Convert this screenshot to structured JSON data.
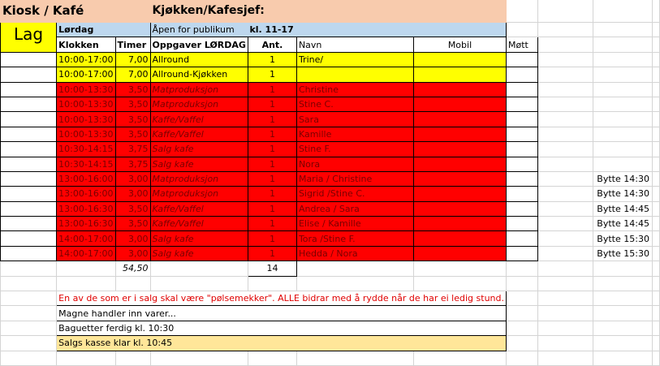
{
  "header": {
    "title": "Kiosk / Kafé",
    "manager_label": "Kjøkken/Kafesjef:",
    "team_label": "Lag",
    "day": "Lørdag",
    "open_label": "Åpen for publikum",
    "open_hours": "kl. 11-17"
  },
  "columns": {
    "time": "Klokken",
    "hours": "Timer",
    "task": "Oppgaver LØRDAG",
    "count": "Ant.",
    "name": "Navn",
    "mobile": "Mobil",
    "attended": "Møtt"
  },
  "shifts": [
    {
      "time": "10:00-17:00",
      "hours": "7,00",
      "task": "Allround",
      "count": "1",
      "name": "Trine/",
      "color": "yellow",
      "note": ""
    },
    {
      "time": "10:00-17:00",
      "hours": "7,00",
      "task": "Allround-Kjøkken",
      "count": "1",
      "name": "",
      "color": "yellow",
      "note": ""
    },
    {
      "time": "10:00-13:30",
      "hours": "3,50",
      "task": "Matproduksjon",
      "count": "1",
      "name": "Christine",
      "color": "red",
      "note": ""
    },
    {
      "time": "10:00-13:30",
      "hours": "3,50",
      "task": "Matproduksjon",
      "count": "1",
      "name": "Stine C.",
      "color": "red",
      "note": ""
    },
    {
      "time": "10:00-13:30",
      "hours": "3,50",
      "task": "Kaffe/Vaffel",
      "count": "1",
      "name": "Sara",
      "color": "red",
      "note": ""
    },
    {
      "time": "10:00-13:30",
      "hours": "3,50",
      "task": "Kaffe/Vaffel",
      "count": "1",
      "name": "Kamille",
      "color": "red",
      "note": ""
    },
    {
      "time": "10:30-14:15",
      "hours": "3,75",
      "task": "Salg kafe",
      "count": "1",
      "name": "Stine F.",
      "color": "red",
      "note": ""
    },
    {
      "time": "10:30-14:15",
      "hours": "3,75",
      "task": "Salg kafe",
      "count": "1",
      "name": "Nora",
      "color": "red",
      "note": ""
    },
    {
      "time": "13:00-16:00",
      "hours": "3,00",
      "task": "Matproduksjon",
      "count": "1",
      "name": "Maria / Christine",
      "color": "red",
      "note": "Bytte 14:30"
    },
    {
      "time": "13:00-16:00",
      "hours": "3,00",
      "task": "Matproduksjon",
      "count": "1",
      "name": "Sigrid /Stine C.",
      "color": "red",
      "note": "Bytte 14:30"
    },
    {
      "time": "13:00-16:30",
      "hours": "3,50",
      "task": "Kaffe/Vaffel",
      "count": "1",
      "name": "Andrea / Sara",
      "color": "red",
      "note": "Bytte 14:45"
    },
    {
      "time": "13:00-16:30",
      "hours": "3,50",
      "task": "Kaffe/Vaffel",
      "count": "1",
      "name": "Elise / Kamille",
      "color": "red",
      "note": "Bytte 14:45"
    },
    {
      "time": "14:00-17:00",
      "hours": "3,00",
      "task": "Salg kafe",
      "count": "1",
      "name": "Tora /Stine F.",
      "color": "red",
      "note": "Bytte 15:30"
    },
    {
      "time": "14:00-17:00",
      "hours": "3,00",
      "task": "Salg kafe",
      "count": "1",
      "name": "Hedda / Nora",
      "color": "red",
      "note": "Bytte 15:30"
    }
  ],
  "totals": {
    "hours": "54,50",
    "count": "14"
  },
  "notes": [
    {
      "text": "En av de som er i salg skal være \"pølsemekker\". ALLE bidrar med å rydde når de har ei ledig stund.",
      "style": "redtxt"
    },
    {
      "text": "Magne handler inn varer...",
      "style": ""
    },
    {
      "text": "Baguetter ferdig kl. 10:30",
      "style": ""
    },
    {
      "text": "Salgs kasse klar kl. 10:45",
      "style": "gold"
    }
  ]
}
